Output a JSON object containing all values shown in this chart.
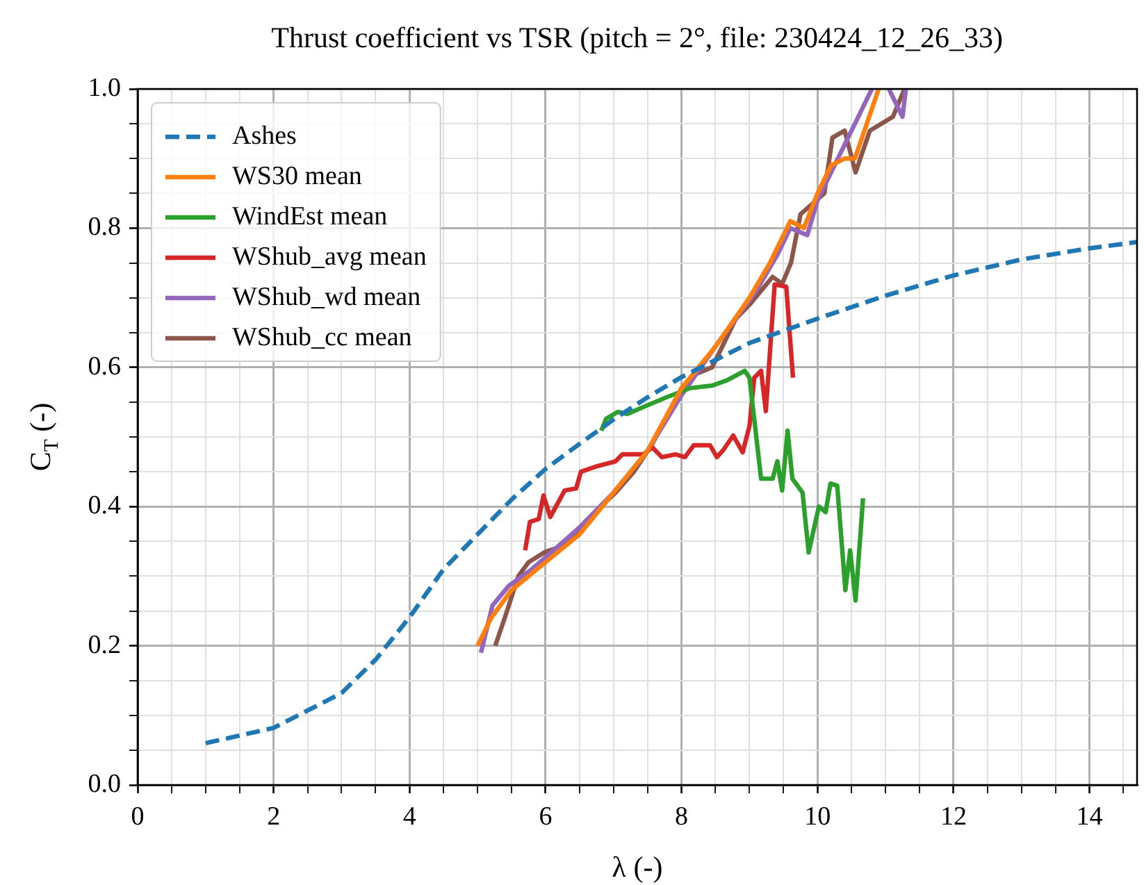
{
  "chart_data": {
    "type": "line",
    "title": "Thrust coefficient vs TSR (pitch = 2°, file: 230424_12_26_33)",
    "xlabel": "λ (-)",
    "ylabel": "C$_{T}$ (-)",
    "xlim": [
      0,
      14.7
    ],
    "ylim": [
      0,
      1
    ],
    "xticks": [
      0,
      {
        "value": 0.5,
        "label": null
      },
      {
        "value": 1,
        "label": null
      },
      {
        "value": 1.5,
        "label": null
      },
      2,
      {
        "value": 2.5,
        "label": null
      },
      {
        "value": 3,
        "label": null
      },
      {
        "value": 3.5,
        "label": null
      },
      4,
      {
        "value": 4.5,
        "label": null
      },
      {
        "value": 5,
        "label": null
      },
      {
        "value": 5.5,
        "label": null
      },
      6,
      {
        "value": 6.5,
        "label": null
      },
      {
        "value": 7,
        "label": null
      },
      {
        "value": 7.5,
        "label": null
      },
      8,
      {
        "value": 8.5,
        "label": null
      },
      {
        "value": 9,
        "label": null
      },
      {
        "value": 9.5,
        "label": null
      },
      10,
      {
        "value": 10.5,
        "label": null
      },
      {
        "value": 11,
        "label": null
      },
      {
        "value": 11.5,
        "label": null
      },
      12,
      {
        "value": 12.5,
        "label": null
      },
      {
        "value": 13,
        "label": null
      },
      {
        "value": 13.5,
        "label": null
      },
      14,
      {
        "value": 14.5,
        "label": null
      }
    ],
    "yticks": [
      {
        "value": 0,
        "label": "0.0"
      },
      {
        "value": 0.05,
        "label": null
      },
      {
        "value": 0.1,
        "label": null
      },
      {
        "value": 0.15,
        "label": null
      },
      {
        "value": 0.2,
        "label": "0.2"
      },
      {
        "value": 0.25,
        "label": null
      },
      {
        "value": 0.3,
        "label": null
      },
      {
        "value": 0.35,
        "label": null
      },
      {
        "value": 0.4,
        "label": "0.4"
      },
      {
        "value": 0.45,
        "label": null
      },
      {
        "value": 0.5,
        "label": null
      },
      {
        "value": 0.55,
        "label": null
      },
      {
        "value": 0.6,
        "label": "0.6"
      },
      {
        "value": 0.65,
        "label": null
      },
      {
        "value": 0.7,
        "label": null
      },
      {
        "value": 0.75,
        "label": null
      },
      {
        "value": 0.8,
        "label": "0.8"
      },
      {
        "value": 0.85,
        "label": null
      },
      {
        "value": 0.9,
        "label": null
      },
      {
        "value": 0.95,
        "label": null
      },
      {
        "value": 1,
        "label": "1.0"
      }
    ],
    "grid": true,
    "legend": "top left",
    "marker": "none",
    "series": [
      {
        "name": "Ashes",
        "color": "#1f77b4",
        "line_style": "dashed",
        "x": [
          1,
          2,
          3,
          3.5,
          4,
          4.5,
          5,
          5.5,
          6,
          6.5,
          7,
          7.5,
          8,
          9,
          10,
          11,
          12,
          13,
          14,
          14.7
        ],
        "values": [
          0.06,
          0.082,
          0.132,
          0.18,
          0.241,
          0.31,
          0.36,
          0.41,
          0.454,
          0.49,
          0.525,
          0.557,
          0.586,
          0.635,
          0.67,
          0.703,
          0.732,
          0.755,
          0.771,
          0.78
        ]
      },
      {
        "name": "WS30 mean",
        "color": "#ff7f0e",
        "line_style": "solid",
        "x": [
          5.0,
          5.2,
          5.5,
          6,
          6.5,
          7,
          7.5,
          8,
          8.5,
          9,
          9.3,
          9.6,
          9.8,
          10,
          10.2,
          10.4,
          10.55,
          10.9
        ],
        "values": [
          0.2,
          0.24,
          0.28,
          0.32,
          0.36,
          0.42,
          0.48,
          0.57,
          0.63,
          0.7,
          0.75,
          0.81,
          0.8,
          0.85,
          0.89,
          0.9,
          0.9,
          1.0
        ]
      },
      {
        "name": "WindEst mean",
        "color": "#2ca02c",
        "line_style": "solid",
        "x": [
          6.82,
          6.89,
          7.06,
          7.2,
          7.44,
          7.78,
          8.12,
          8.46,
          8.66,
          8.93,
          9.0,
          9.17,
          9.34,
          9.41,
          9.48,
          9.56,
          9.63,
          9.78,
          9.87,
          10.02,
          10.12,
          10.19,
          10.29,
          10.41,
          10.48,
          10.56,
          10.67
        ],
        "values": [
          0.509,
          0.526,
          0.536,
          0.533,
          0.543,
          0.557,
          0.57,
          0.574,
          0.581,
          0.595,
          0.585,
          0.44,
          0.44,
          0.465,
          0.423,
          0.509,
          0.44,
          0.42,
          0.334,
          0.4,
          0.392,
          0.433,
          0.43,
          0.28,
          0.337,
          0.265,
          0.412
        ]
      },
      {
        "name": "WShub_avg mean",
        "color": "#d62728",
        "line_style": "solid",
        "x": [
          5.7,
          5.77,
          5.9,
          5.97,
          6.07,
          6.28,
          6.45,
          6.52,
          6.76,
          7.03,
          7.13,
          7.44,
          7.57,
          7.71,
          7.91,
          8.05,
          8.18,
          8.42,
          8.52,
          8.62,
          8.76,
          8.9,
          9.0,
          9.07,
          9.17,
          9.24,
          9.37,
          9.54,
          9.64
        ],
        "values": [
          0.337,
          0.378,
          0.382,
          0.416,
          0.385,
          0.423,
          0.426,
          0.45,
          0.458,
          0.465,
          0.475,
          0.475,
          0.485,
          0.471,
          0.475,
          0.471,
          0.488,
          0.488,
          0.471,
          0.482,
          0.502,
          0.478,
          0.516,
          0.585,
          0.595,
          0.537,
          0.719,
          0.716,
          0.585
        ]
      },
      {
        "name": "WShub_wd mean",
        "color": "#9467bd",
        "line_style": "solid",
        "x": [
          5.05,
          5.22,
          5.46,
          5.8,
          6.08,
          6.5,
          7,
          7.5,
          8,
          8.52,
          8.8,
          9.1,
          9.4,
          9.6,
          9.85,
          10.0,
          10.3,
          10.6,
          10.8,
          null,
          11.05,
          11.25,
          11.3
        ],
        "values": [
          0.19,
          0.258,
          0.286,
          0.31,
          0.334,
          0.37,
          0.42,
          0.48,
          0.56,
          0.633,
          0.67,
          0.71,
          0.76,
          0.8,
          0.79,
          0.84,
          0.9,
          0.96,
          1.0,
          null,
          1.0,
          0.96,
          1.0
        ]
      },
      {
        "name": "WShub_cc mean",
        "color": "#8c564b",
        "line_style": "solid",
        "x": [
          5.26,
          5.4,
          5.6,
          5.75,
          6.0,
          6.28,
          6.6,
          7.03,
          7.3,
          7.57,
          8.0,
          8.2,
          8.45,
          8.6,
          8.8,
          9.0,
          9.34,
          9.48,
          9.61,
          9.75,
          10.1,
          10.22,
          10.4,
          10.56,
          10.77,
          11.11,
          11.28
        ],
        "values": [
          0.2,
          0.24,
          0.3,
          0.32,
          0.335,
          0.344,
          0.38,
          0.42,
          0.45,
          0.49,
          0.57,
          0.59,
          0.6,
          0.63,
          0.67,
          0.69,
          0.73,
          0.72,
          0.75,
          0.82,
          0.85,
          0.93,
          0.94,
          0.88,
          0.94,
          0.96,
          1.0
        ]
      }
    ]
  }
}
